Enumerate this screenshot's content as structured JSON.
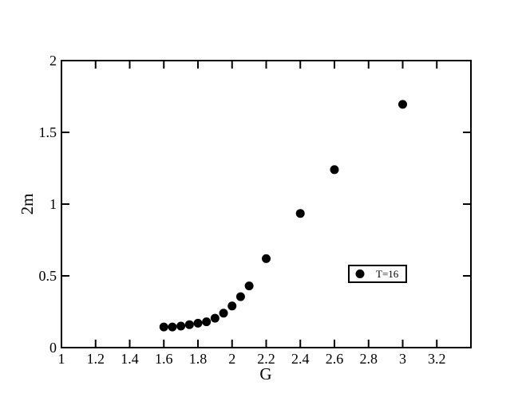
{
  "chart_data": {
    "type": "scatter",
    "x_label": "G",
    "y_label": "2m",
    "series": [
      {
        "name": "T=16",
        "color": "#000000",
        "x": [
          1.6,
          1.65,
          1.7,
          1.75,
          1.8,
          1.85,
          1.9,
          1.95,
          2.0,
          2.05,
          2.1,
          2.2,
          2.4,
          2.6,
          3.0
        ],
        "values": [
          0.144,
          0.144,
          0.15,
          0.16,
          0.17,
          0.18,
          0.205,
          0.24,
          0.29,
          0.355,
          0.43,
          0.62,
          0.935,
          1.24,
          1.695
        ]
      }
    ],
    "xlim": [
      1,
      3.4
    ],
    "xticks": [
      1,
      1.2,
      1.4,
      1.6,
      1.8,
      2,
      2.2,
      2.4,
      2.6,
      2.8,
      3,
      3.2
    ],
    "ylim": [
      0,
      2
    ],
    "yticks": [
      0,
      0.5,
      1,
      1.5,
      2
    ],
    "legend": "lower right"
  }
}
